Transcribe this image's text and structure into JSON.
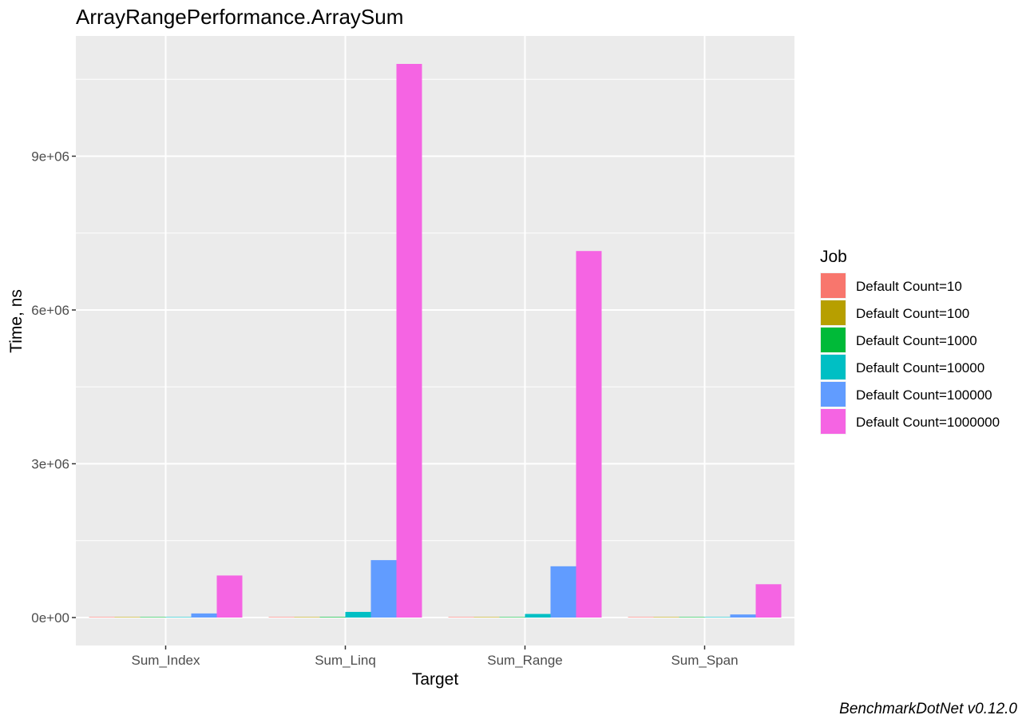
{
  "chart_data": {
    "type": "bar",
    "title": "ArrayRangePerformance.ArraySum",
    "xlabel": "Target",
    "ylabel": "Time, ns",
    "caption": "BenchmarkDotNet v0.12.0",
    "categories": [
      "Sum_Index",
      "Sum_Linq",
      "Sum_Range",
      "Sum_Span"
    ],
    "ylim": [
      -700000,
      11500000
    ],
    "y_ticks": [
      0,
      3000000,
      6000000,
      9000000
    ],
    "y_tick_labels": [
      "0e+00",
      "3e+06",
      "6e+06",
      "9e+06"
    ],
    "grid": true,
    "legend": {
      "title": "Job",
      "position": "right"
    },
    "series": [
      {
        "name": "Default Count=10",
        "color": "#F8766D",
        "values": [
          10,
          80,
          10,
          10
        ]
      },
      {
        "name": "Default Count=100",
        "color": "#B79F00",
        "values": [
          60,
          800,
          70,
          60
        ]
      },
      {
        "name": "Default Count=1000",
        "color": "#00BA38",
        "values": [
          800,
          11000,
          700,
          700
        ]
      },
      {
        "name": "Default Count=10000",
        "color": "#00BFC4",
        "values": [
          8000,
          110000,
          70000,
          6000
        ]
      },
      {
        "name": "Default Count=100000",
        "color": "#619CFF",
        "values": [
          80000,
          1120000,
          1000000,
          60000
        ]
      },
      {
        "name": "Default Count=1000000",
        "color": "#F564E3",
        "values": [
          820000,
          10800000,
          7150000,
          650000
        ]
      }
    ],
    "panel_background": "#EBEBEB",
    "grid_color": "#FFFFFF"
  }
}
